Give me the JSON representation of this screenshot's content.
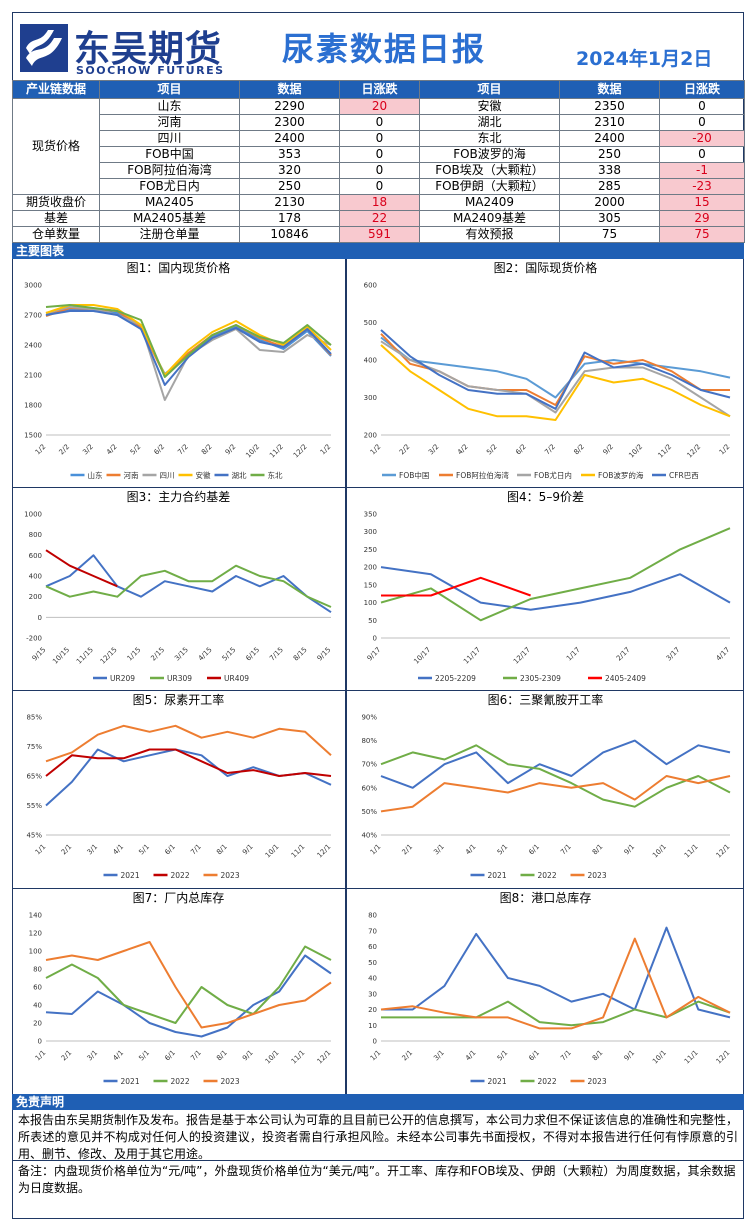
{
  "header": {
    "brand_cn": "东吴期货",
    "brand_en": "SOOCHOW FUTURES",
    "title": "尿素数据日报",
    "date": "2024年1月2日",
    "brand_color": "#1f3f8f",
    "accent_color": "#2b6fd1"
  },
  "table": {
    "headers": [
      "产业链数据",
      "项目",
      "数据",
      "日涨跌",
      "项目",
      "数据",
      "日涨跌"
    ],
    "spot_label": "现货价格",
    "spot_rows": [
      {
        "item1": "山东",
        "val1": "2290",
        "chg1": "20",
        "item2": "安徽",
        "val2": "2350",
        "chg2": "0"
      },
      {
        "item1": "河南",
        "val1": "2300",
        "chg1": "0",
        "item2": "湖北",
        "val2": "2310",
        "chg2": "0"
      },
      {
        "item1": "四川",
        "val1": "2400",
        "chg1": "0",
        "item2": "东北",
        "val2": "2400",
        "chg2": "-20"
      },
      {
        "item1": "FOB中国",
        "val1": "353",
        "chg1": "0",
        "item2": "FOB波罗的海",
        "val2": "250",
        "chg2": "0"
      },
      {
        "item1": "FOB阿拉伯海湾",
        "val1": "320",
        "chg1": "0",
        "item2": "FOB埃及（大颗粒）",
        "val2": "338",
        "chg2": "-1"
      },
      {
        "item1": "FOB尤日内",
        "val1": "250",
        "chg1": "0",
        "item2": "FOB伊朗（大颗粒）",
        "val2": "285",
        "chg2": "-23"
      }
    ],
    "other_rows": [
      {
        "label": "期货收盘价",
        "item1": "MA2405",
        "val1": "2130",
        "chg1": "18",
        "item2": "MA2409",
        "val2": "2000",
        "chg2": "15"
      },
      {
        "label": "基差",
        "item1": "MA2405基差",
        "val1": "178",
        "chg1": "22",
        "item2": "MA2409基差",
        "val2": "305",
        "chg2": "29"
      },
      {
        "label": "仓单数量",
        "item1": "注册仓单量",
        "val1": "10846",
        "chg1": "591",
        "item2": "有效预报",
        "val2": "75",
        "chg2": "75"
      }
    ]
  },
  "sections": {
    "charts": "主要图表",
    "disclaimer": "免责声明"
  },
  "disclaimer_text": "本报告由东吴期货制作及发布。报告是基于本公司认为可靠的且目前已公开的信息撰写，本公司力求但不保证该信息的准确性和完整性，所表述的意见并不构成对任何人的投资建议，投资者需自行承担风险。未经本公司事先书面授权，不得对本报告进行任何有悖原意的引用、删节、修改、及用于其它用途。",
  "note_text": "备注：内盘现货价格单位为“元/吨”，外盘现货价格单位为“美元/吨”。开工率、库存和FOB埃及、伊朗（大颗粒）为周度数据，其余数据为日度数据。",
  "chart_data": [
    {
      "id": "c1",
      "type": "line",
      "title": "图1：国内现货价格",
      "x": [
        "1/2",
        "2/2",
        "3/2",
        "4/2",
        "5/2",
        "6/2",
        "7/2",
        "8/2",
        "9/2",
        "10/2",
        "11/2",
        "12/2",
        "1/2"
      ],
      "ylim": [
        1500,
        3000
      ],
      "yticks": [
        1500,
        1800,
        2100,
        2400,
        2700,
        3000
      ],
      "ytick_labels": [
        "1500",
        "1800",
        "2100",
        "2400",
        "2700",
        "3000"
      ],
      "series": [
        {
          "name": "山东",
          "color": "#4a90d9",
          "values": [
            2700,
            2760,
            2740,
            2720,
            2560,
            2110,
            2300,
            2490,
            2580,
            2450,
            2360,
            2540,
            2290
          ]
        },
        {
          "name": "河南",
          "color": "#ed7d31",
          "values": [
            2690,
            2770,
            2760,
            2740,
            2580,
            2090,
            2320,
            2500,
            2600,
            2470,
            2380,
            2560,
            2300
          ]
        },
        {
          "name": "四川",
          "color": "#a5a5a5",
          "values": [
            2720,
            2780,
            2760,
            2700,
            2600,
            1850,
            2300,
            2450,
            2560,
            2350,
            2330,
            2500,
            2400
          ]
        },
        {
          "name": "安徽",
          "color": "#ffc000",
          "values": [
            2720,
            2800,
            2800,
            2760,
            2600,
            2100,
            2350,
            2530,
            2640,
            2500,
            2400,
            2580,
            2350
          ]
        },
        {
          "name": "湖北",
          "color": "#4472c4",
          "values": [
            2700,
            2740,
            2740,
            2700,
            2560,
            2000,
            2280,
            2470,
            2570,
            2430,
            2380,
            2560,
            2310
          ]
        },
        {
          "name": "东北",
          "color": "#70ad47",
          "values": [
            2780,
            2800,
            2770,
            2740,
            2650,
            2080,
            2300,
            2500,
            2600,
            2480,
            2420,
            2600,
            2400
          ]
        }
      ]
    },
    {
      "id": "c2",
      "type": "line",
      "title": "图2：国际现货价格",
      "x": [
        "1/2",
        "2/2",
        "3/2",
        "4/2",
        "5/2",
        "6/2",
        "7/2",
        "8/2",
        "9/2",
        "10/2",
        "11/2",
        "12/2",
        "1/2"
      ],
      "ylim": [
        200,
        600
      ],
      "yticks": [
        200,
        300,
        400,
        500,
        600
      ],
      "ytick_labels": [
        "200",
        "300",
        "400",
        "500",
        "600"
      ],
      "series": [
        {
          "name": "FOB中国",
          "color": "#5b9bd5",
          "values": [
            460,
            400,
            390,
            380,
            370,
            350,
            300,
            390,
            400,
            390,
            380,
            370,
            353
          ]
        },
        {
          "name": "FOB阿拉伯海湾",
          "color": "#ed7d31",
          "values": [
            470,
            390,
            370,
            330,
            320,
            320,
            280,
            410,
            390,
            400,
            370,
            320,
            320
          ]
        },
        {
          "name": "FOB尤日内",
          "color": "#a5a5a5",
          "values": [
            450,
            400,
            370,
            330,
            320,
            310,
            260,
            370,
            380,
            380,
            350,
            300,
            250
          ]
        },
        {
          "name": "FOB波罗的海",
          "color": "#ffc000",
          "values": [
            440,
            370,
            320,
            270,
            250,
            250,
            240,
            360,
            340,
            350,
            320,
            280,
            250
          ]
        },
        {
          "name": "CFR巴西",
          "color": "#4472c4",
          "values": [
            480,
            410,
            360,
            320,
            310,
            310,
            270,
            420,
            380,
            390,
            360,
            320,
            300
          ]
        }
      ]
    },
    {
      "id": "c3",
      "type": "line",
      "title": "图3：主力合约基差",
      "x": [
        "9/15",
        "10/15",
        "11/15",
        "12/15",
        "1/15",
        "2/15",
        "3/15",
        "4/15",
        "5/15",
        "6/15",
        "7/15",
        "8/15",
        "9/15"
      ],
      "ylim": [
        -200,
        1000
      ],
      "yticks": [
        -200,
        0,
        200,
        400,
        600,
        800,
        1000
      ],
      "ytick_labels": [
        "-200",
        "0",
        "200",
        "400",
        "600",
        "800",
        "1000"
      ],
      "series": [
        {
          "name": "UR209",
          "color": "#4472c4",
          "values": [
            300,
            400,
            600,
            300,
            200,
            350,
            300,
            250,
            400,
            300,
            400,
            200,
            50
          ]
        },
        {
          "name": "UR309",
          "color": "#70ad47",
          "values": [
            300,
            200,
            250,
            200,
            400,
            450,
            350,
            350,
            500,
            400,
            350,
            200,
            100
          ]
        },
        {
          "name": "UR409",
          "color": "#c00000",
          "values": [
            650,
            500,
            400,
            300,
            null,
            null,
            null,
            null,
            null,
            null,
            null,
            null,
            null
          ]
        }
      ]
    },
    {
      "id": "c4",
      "type": "line",
      "title": "图4：5–9价差",
      "x": [
        "9/17",
        "10/17",
        "11/17",
        "12/17",
        "1/17",
        "2/17",
        "3/17",
        "4/17"
      ],
      "ylim": [
        0,
        350
      ],
      "yticks": [
        0,
        50,
        100,
        150,
        200,
        250,
        300,
        350
      ],
      "ytick_labels": [
        "0",
        "50",
        "100",
        "150",
        "200",
        "250",
        "300",
        "350"
      ],
      "series": [
        {
          "name": "2205-2209",
          "color": "#4472c4",
          "values": [
            200,
            180,
            100,
            80,
            100,
            130,
            180,
            100
          ]
        },
        {
          "name": "2305-2309",
          "color": "#70ad47",
          "values": [
            100,
            140,
            50,
            110,
            140,
            170,
            250,
            310
          ]
        },
        {
          "name": "2405-2409",
          "color": "#ff0000",
          "values": [
            120,
            120,
            170,
            120,
            null,
            null,
            null,
            null
          ]
        }
      ]
    },
    {
      "id": "c5",
      "type": "line",
      "title": "图5：尿素开工率",
      "x": [
        "1/1",
        "2/1",
        "3/1",
        "4/1",
        "5/1",
        "6/1",
        "7/1",
        "8/1",
        "9/1",
        "10/1",
        "11/1",
        "12/1"
      ],
      "ylim": [
        45,
        85
      ],
      "yticks": [
        45,
        55,
        65,
        75,
        85
      ],
      "ytick_labels": [
        "45%",
        "55%",
        "65%",
        "75%",
        "85%"
      ],
      "series": [
        {
          "name": "2021",
          "color": "#4472c4",
          "values": [
            55,
            63,
            74,
            70,
            72,
            74,
            72,
            65,
            68,
            65,
            66,
            62
          ]
        },
        {
          "name": "2022",
          "color": "#c00000",
          "values": [
            65,
            72,
            71,
            71,
            74,
            74,
            70,
            66,
            67,
            65,
            66,
            65
          ]
        },
        {
          "name": "2023",
          "color": "#ed7d31",
          "values": [
            70,
            73,
            79,
            82,
            80,
            82,
            78,
            80,
            78,
            81,
            80,
            72
          ]
        }
      ]
    },
    {
      "id": "c6",
      "type": "line",
      "title": "图6：三聚氰胺开工率",
      "x": [
        "1/1",
        "2/1",
        "3/1",
        "4/1",
        "5/1",
        "6/1",
        "7/1",
        "8/1",
        "9/1",
        "10/1",
        "11/1",
        "12/1"
      ],
      "ylim": [
        40,
        90
      ],
      "yticks": [
        40,
        50,
        60,
        70,
        80,
        90
      ],
      "ytick_labels": [
        "40%",
        "50%",
        "60%",
        "70%",
        "80%",
        "90%"
      ],
      "series": [
        {
          "name": "2021",
          "color": "#4472c4",
          "values": [
            65,
            60,
            70,
            75,
            62,
            70,
            65,
            75,
            80,
            70,
            78,
            75
          ]
        },
        {
          "name": "2022",
          "color": "#70ad47",
          "values": [
            70,
            75,
            72,
            78,
            70,
            68,
            62,
            55,
            52,
            60,
            65,
            58
          ]
        },
        {
          "name": "2023",
          "color": "#ed7d31",
          "values": [
            50,
            52,
            62,
            60,
            58,
            62,
            60,
            62,
            55,
            65,
            62,
            65
          ]
        }
      ]
    },
    {
      "id": "c7",
      "type": "line",
      "title": "图7：厂内总库存",
      "x": [
        "1/1",
        "2/1",
        "3/1",
        "4/1",
        "5/1",
        "6/1",
        "7/1",
        "8/1",
        "9/1",
        "10/1",
        "11/1",
        "12/1"
      ],
      "ylim": [
        0,
        140
      ],
      "yticks": [
        0,
        20,
        40,
        60,
        80,
        100,
        120,
        140
      ],
      "ytick_labels": [
        "0",
        "20",
        "40",
        "60",
        "80",
        "100",
        "120",
        "140"
      ],
      "series": [
        {
          "name": "2021",
          "color": "#4472c4",
          "values": [
            32,
            30,
            55,
            40,
            20,
            10,
            5,
            15,
            40,
            55,
            95,
            75
          ]
        },
        {
          "name": "2022",
          "color": "#70ad47",
          "values": [
            70,
            85,
            70,
            40,
            30,
            20,
            60,
            40,
            30,
            60,
            105,
            90
          ]
        },
        {
          "name": "2023",
          "color": "#ed7d31",
          "values": [
            90,
            95,
            90,
            100,
            110,
            60,
            15,
            20,
            30,
            40,
            45,
            65
          ]
        }
      ]
    },
    {
      "id": "c8",
      "type": "line",
      "title": "图8：港口总库存",
      "x": [
        "1/1",
        "2/1",
        "3/1",
        "4/1",
        "5/1",
        "6/1",
        "7/1",
        "8/1",
        "9/1",
        "10/1",
        "11/1",
        "12/1"
      ],
      "ylim": [
        0,
        80
      ],
      "yticks": [
        0,
        10,
        20,
        30,
        40,
        50,
        60,
        70,
        80
      ],
      "ytick_labels": [
        "0",
        "10",
        "20",
        "30",
        "40",
        "50",
        "60",
        "70",
        "80"
      ],
      "series": [
        {
          "name": "2021",
          "color": "#4472c4",
          "values": [
            20,
            20,
            35,
            68,
            40,
            35,
            25,
            30,
            20,
            72,
            20,
            15
          ]
        },
        {
          "name": "2022",
          "color": "#70ad47",
          "values": [
            15,
            15,
            15,
            15,
            25,
            12,
            10,
            12,
            20,
            15,
            25,
            18
          ]
        },
        {
          "name": "2023",
          "color": "#ed7d31",
          "values": [
            20,
            22,
            18,
            15,
            15,
            8,
            8,
            15,
            65,
            15,
            28,
            18
          ]
        }
      ]
    }
  ]
}
